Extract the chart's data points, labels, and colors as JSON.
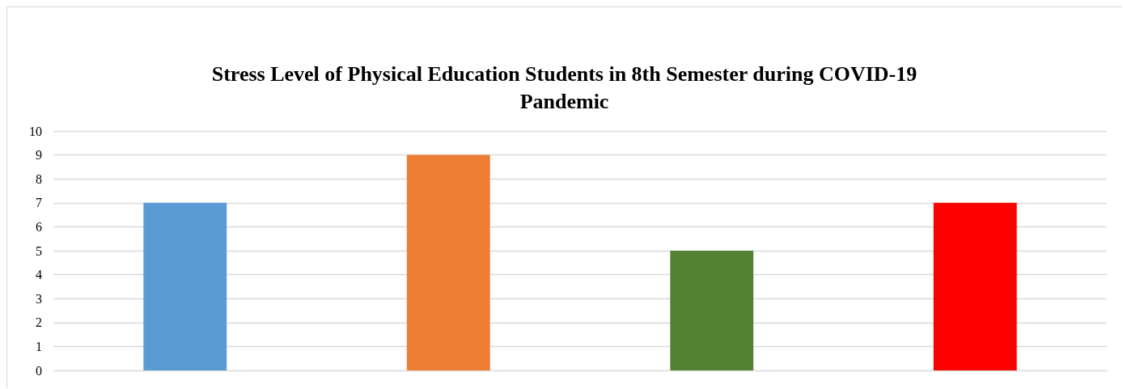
{
  "chart_data": {
    "type": "bar",
    "title": "Stress Level of Physical Education Students in 8th Semester during COVID-19\nPandemic",
    "categories": [
      null,
      null,
      null,
      null
    ],
    "values": [
      7,
      9,
      5,
      7
    ],
    "colors": [
      "#5b9bd5",
      "#ed7d31",
      "#548235",
      "#ff0000"
    ],
    "ylim": [
      0,
      10
    ],
    "yticks": [
      0,
      1,
      2,
      3,
      4,
      5,
      6,
      7,
      8,
      9,
      10
    ],
    "grid": "y"
  }
}
